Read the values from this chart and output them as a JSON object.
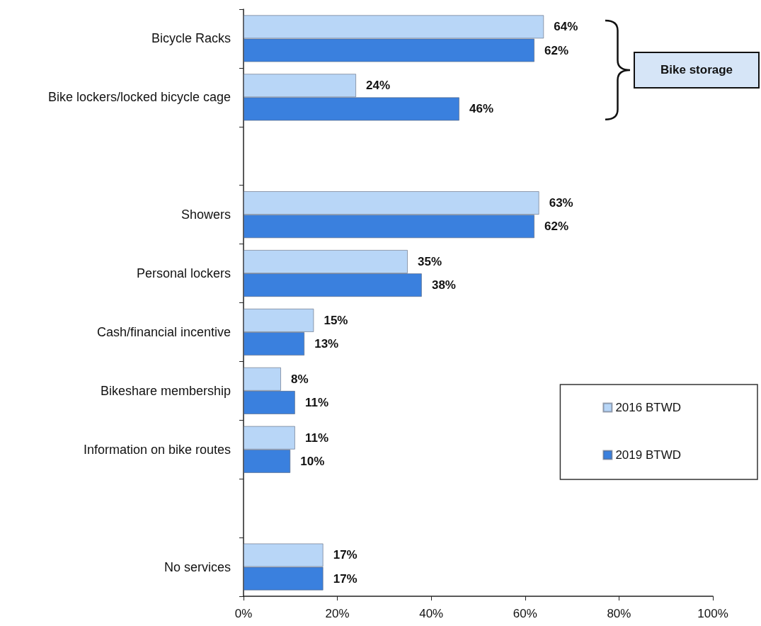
{
  "chart_data": {
    "type": "bar",
    "orientation": "horizontal",
    "categories": [
      "Bicycle Racks",
      "Bike lockers/locked bicycle cage",
      null,
      "Showers",
      "Personal lockers",
      "Cash/financial incentive",
      "Bikeshare membership",
      "Information on bike routes",
      null,
      "No services"
    ],
    "series": [
      {
        "name": "2016 BTWD",
        "color": "#b8d6f7",
        "values": [
          64,
          24,
          null,
          63,
          35,
          15,
          8,
          11,
          null,
          17
        ],
        "value_labels": [
          "64%",
          "24%",
          null,
          "63%",
          "35%",
          "15%",
          "8%",
          "11%",
          null,
          "17%"
        ]
      },
      {
        "name": "2019 BTWD",
        "color": "#3a80de",
        "values": [
          62,
          46,
          null,
          62,
          38,
          13,
          11,
          10,
          null,
          17
        ],
        "value_labels": [
          "62%",
          "46%",
          null,
          "62%",
          "38%",
          "13%",
          "11%",
          "10%",
          null,
          "17%"
        ]
      }
    ],
    "xlim": [
      0,
      100
    ],
    "xticks": [
      {
        "value": 0,
        "label": "0%"
      },
      {
        "value": 20,
        "label": "20%"
      },
      {
        "value": 40,
        "label": "40%"
      },
      {
        "value": 60,
        "label": "60%"
      },
      {
        "value": 80,
        "label": "80%"
      },
      {
        "value": 100,
        "label": "100%"
      }
    ],
    "grid": false,
    "legend": "right",
    "annotations": [
      "Bike storage"
    ]
  }
}
